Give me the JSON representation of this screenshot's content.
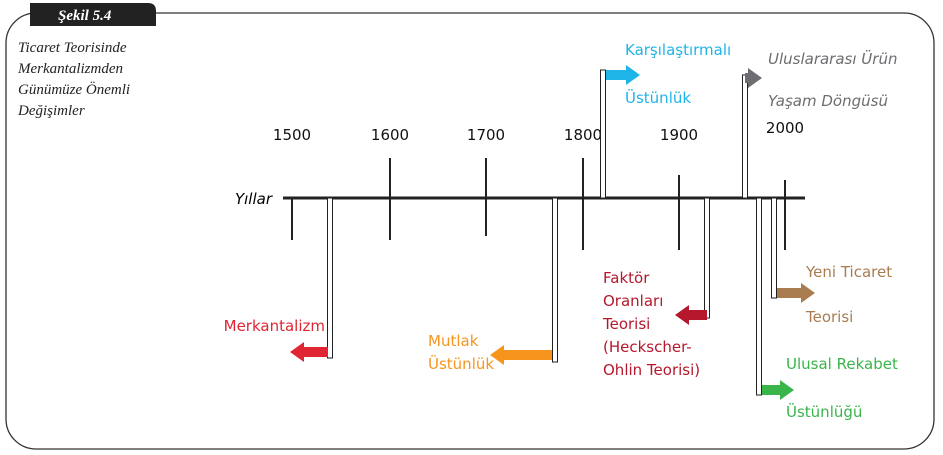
{
  "figure_label": "Şekil 5.4",
  "title": [
    "Ticaret Teorisinde",
    "Merkantalizmden",
    "Günümüze Önemli",
    "Değişimler"
  ],
  "axis_label": "Yıllar",
  "years": [
    "1500",
    "1600",
    "1700",
    "1800",
    "1900",
    "2000"
  ],
  "events": [
    {
      "lines": [
        "Merkantalizm"
      ]
    },
    {
      "lines": [
        "Mutlak",
        "Üstünlük"
      ]
    },
    {
      "lines": [
        "Karşılaştırmalı",
        "Üstünlük"
      ]
    },
    {
      "lines": [
        "Faktör",
        "Oranları",
        "Teorisi",
        "(Heckscher-",
        "Ohlin Teorisi)"
      ]
    },
    {
      "lines": [
        "Uluslararası Ürün",
        "Yaşam Döngüsü"
      ]
    },
    {
      "lines": [
        "Ulusal Rekabet",
        "Üstünlüğü"
      ]
    },
    {
      "lines": [
        "Yeni Ticaret",
        "Teorisi"
      ]
    }
  ]
}
